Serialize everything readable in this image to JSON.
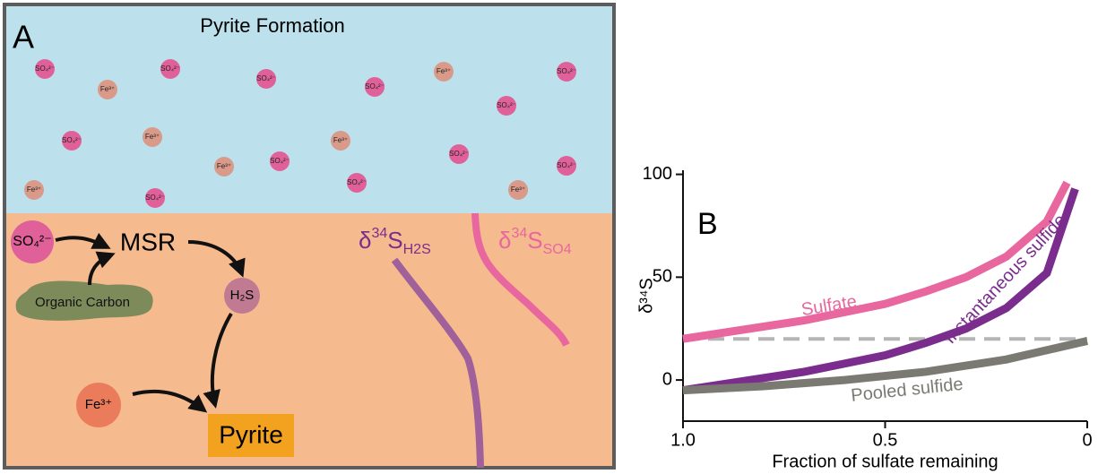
{
  "panel_a": {
    "label": "A",
    "title": "Pyrite Formation",
    "water_ions": [
      "SO₄²⁻",
      "SO₄²⁻",
      "SO₄²⁻",
      "SO₄²⁻",
      "SO₄²⁻",
      "SO₄²⁻",
      "SO₄²⁻",
      "SO₄²⁻",
      "SO₄²⁻",
      "SO₄²⁻",
      "SO₄²⁻",
      "SO₄²⁻",
      "Fe³⁺",
      "Fe³⁺",
      "Fe³⁺",
      "Fe³⁺",
      "Fe³⁺",
      "Fe³⁺",
      "Fe³⁺"
    ],
    "sulfate": "SO₄²⁻",
    "process": "MSR",
    "organic_carbon": "Organic Carbon",
    "sulfide": "H₂S",
    "iron": "Fe³⁺",
    "product": "Pyrite",
    "h2s_profile": {
      "delta": "δ",
      "mass": "34",
      "element": "S",
      "subscript": "H2S"
    },
    "so4_profile": {
      "delta": "δ",
      "mass": "34",
      "element": "S",
      "subscript": "SO4"
    }
  },
  "chart_data": {
    "type": "line",
    "panel_label": "B",
    "x_label": "Fraction of sulfate remaining",
    "y_label": "δ³⁴S",
    "xlim": [
      1.0,
      0
    ],
    "ylim": [
      -20,
      102
    ],
    "xticks": [
      {
        "value": 1.0,
        "label": "1.0"
      },
      0.5,
      0
    ],
    "yticks": [
      0,
      50,
      100
    ],
    "reference_line": 20,
    "series": [
      {
        "name": "Sulfate",
        "color": "#e8679e",
        "x": [
          1.0,
          0.9,
          0.8,
          0.7,
          0.6,
          0.5,
          0.4,
          0.3,
          0.2,
          0.1,
          0.05
        ],
        "values": [
          20,
          23,
          26,
          29,
          33,
          37,
          43,
          50,
          60,
          77,
          96
        ]
      },
      {
        "name": "Instantaneous sulfide",
        "color": "#7b2d8e",
        "x": [
          1.0,
          0.9,
          0.8,
          0.7,
          0.6,
          0.5,
          0.4,
          0.3,
          0.2,
          0.1,
          0.03
        ],
        "values": [
          -5,
          -2,
          1,
          4,
          8,
          12,
          18,
          25,
          35,
          52,
          93
        ]
      },
      {
        "name": "Pooled sulfide",
        "color": "#7a7a72",
        "x": [
          1.0,
          0.8,
          0.6,
          0.4,
          0.2,
          0
        ],
        "values": [
          -5,
          -3,
          0,
          4,
          10,
          19
        ]
      }
    ]
  }
}
